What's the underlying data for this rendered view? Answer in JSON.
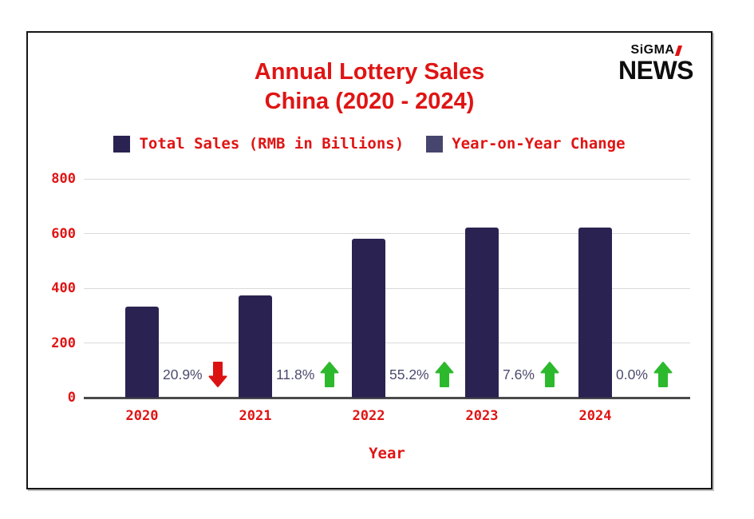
{
  "header": {
    "title_line1": "Annual Lottery Sales",
    "title_line2": "China (2020 - 2024)",
    "title_color": "#e01414",
    "logo": {
      "brand": "SiGMA",
      "word": "NEWS",
      "accent_color": "#e01010",
      "text_color": "#0d0d0d"
    }
  },
  "legend": {
    "text_color": "#e01414",
    "items": [
      {
        "label": "Total Sales (RMB in Billions)",
        "swatch_color": "#2a2351"
      },
      {
        "label": "Year-on-Year Change",
        "swatch_color": "#46456e"
      }
    ]
  },
  "chart_data": {
    "type": "bar",
    "title": "Annual Lottery Sales China (2020 - 2024)",
    "categories": [
      "2020",
      "2021",
      "2022",
      "2023",
      "2024"
    ],
    "series": [
      {
        "name": "Total Sales (RMB in Billions)",
        "values": [
          334,
          373,
          580,
          623,
          623
        ],
        "color": "#2a2351"
      },
      {
        "name": "Year-on-Year Change",
        "values": [
          -20.9,
          11.8,
          55.2,
          7.6,
          0.0
        ]
      }
    ],
    "annotations": [
      {
        "label": "20.9%",
        "direction": "down",
        "arrow_color": "#dc1212"
      },
      {
        "label": "11.8%",
        "direction": "up",
        "arrow_color": "#2db92d"
      },
      {
        "label": "55.2%",
        "direction": "up",
        "arrow_color": "#2db92d"
      },
      {
        "label": "7.6%",
        "direction": "up",
        "arrow_color": "#2db92d"
      },
      {
        "label": "0.0%",
        "direction": "up",
        "arrow_color": "#2db92d"
      }
    ],
    "xlabel": "Year",
    "ylabel": "",
    "ylim": [
      0,
      800
    ],
    "yticks": [
      0,
      200,
      400,
      600,
      800
    ],
    "grid": true,
    "legend_position": "top",
    "annotation_text_color": "#4c4b6e",
    "axis_label_color": "#e01414",
    "gridline_color": "#d9d9d9",
    "baseline_color": "#4a4a4a"
  }
}
